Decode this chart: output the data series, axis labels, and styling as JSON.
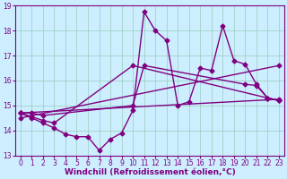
{
  "bg_color": "#cceeff",
  "line_color": "#800080",
  "marker": "D",
  "markersize": 2.5,
  "linewidth": 1.0,
  "xlabel": "Windchill (Refroidissement éolien,°C)",
  "xlabel_fontsize": 6.5,
  "tick_fontsize": 5.5,
  "xlim": [
    -0.5,
    23.5
  ],
  "ylim": [
    13,
    19
  ],
  "yticks": [
    13,
    14,
    15,
    16,
    17,
    18,
    19
  ],
  "xticks": [
    0,
    1,
    2,
    3,
    4,
    5,
    6,
    7,
    8,
    9,
    10,
    11,
    12,
    13,
    14,
    15,
    16,
    17,
    18,
    19,
    20,
    21,
    22,
    23
  ],
  "grid_color": "#99ccbb",
  "series": [
    {
      "x": [
        0,
        1,
        2,
        3,
        4,
        5,
        6,
        7,
        8,
        9,
        10,
        11,
        12,
        13,
        14,
        15,
        16,
        17,
        18,
        19,
        20,
        21,
        22,
        23
      ],
      "y": [
        14.7,
        14.5,
        14.3,
        14.1,
        13.85,
        13.75,
        13.75,
        13.2,
        13.65,
        13.9,
        14.8,
        18.75,
        18.0,
        17.6,
        15.0,
        15.15,
        16.5,
        16.4,
        18.2,
        16.8,
        16.65,
        15.85,
        15.3,
        15.2
      ]
    },
    {
      "x": [
        0,
        1,
        2,
        10,
        11,
        20,
        21,
        22,
        23
      ],
      "y": [
        14.7,
        14.7,
        14.6,
        15.0,
        16.6,
        15.85,
        15.8,
        15.3,
        15.2
      ]
    },
    {
      "x": [
        0,
        23
      ],
      "y": [
        14.7,
        15.25
      ]
    },
    {
      "x": [
        0,
        23
      ],
      "y": [
        14.5,
        16.6
      ]
    },
    {
      "x": [
        0,
        1,
        2,
        3,
        10,
        22,
        23
      ],
      "y": [
        14.7,
        14.55,
        14.4,
        14.3,
        16.6,
        15.3,
        15.2
      ]
    }
  ]
}
